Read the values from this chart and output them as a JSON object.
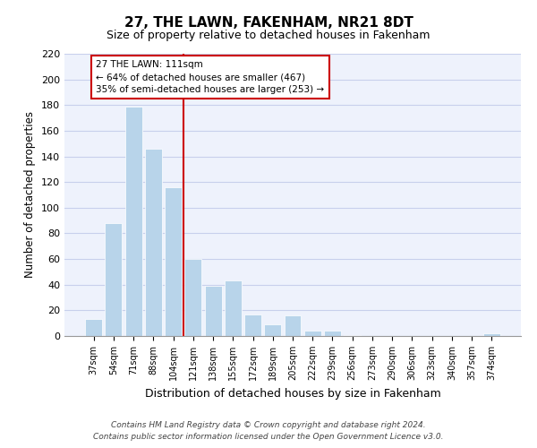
{
  "title": "27, THE LAWN, FAKENHAM, NR21 8DT",
  "subtitle": "Size of property relative to detached houses in Fakenham",
  "xlabel": "Distribution of detached houses by size in Fakenham",
  "ylabel": "Number of detached properties",
  "categories": [
    "37sqm",
    "54sqm",
    "71sqm",
    "88sqm",
    "104sqm",
    "121sqm",
    "138sqm",
    "155sqm",
    "172sqm",
    "189sqm",
    "205sqm",
    "222sqm",
    "239sqm",
    "256sqm",
    "273sqm",
    "290sqm",
    "306sqm",
    "323sqm",
    "340sqm",
    "357sqm",
    "374sqm"
  ],
  "values": [
    13,
    88,
    179,
    146,
    116,
    60,
    39,
    43,
    17,
    9,
    16,
    4,
    4,
    1,
    0,
    0,
    0,
    0,
    0,
    0,
    2
  ],
  "bar_color": "#b8d4ea",
  "vline_x": 4.5,
  "vline_color": "#cc0000",
  "annotation_text": "27 THE LAWN: 111sqm\n← 64% of detached houses are smaller (467)\n35% of semi-detached houses are larger (253) →",
  "annotation_box_color": "#ffffff",
  "annotation_box_edge": "#cc0000",
  "ylim": [
    0,
    220
  ],
  "yticks": [
    0,
    20,
    40,
    60,
    80,
    100,
    120,
    140,
    160,
    180,
    200,
    220
  ],
  "footer_line1": "Contains HM Land Registry data © Crown copyright and database right 2024.",
  "footer_line2": "Contains public sector information licensed under the Open Government Licence v3.0.",
  "bg_color": "#eef2fc",
  "grid_color": "#c8d0ec",
  "title_fontsize": 11,
  "subtitle_fontsize": 9
}
